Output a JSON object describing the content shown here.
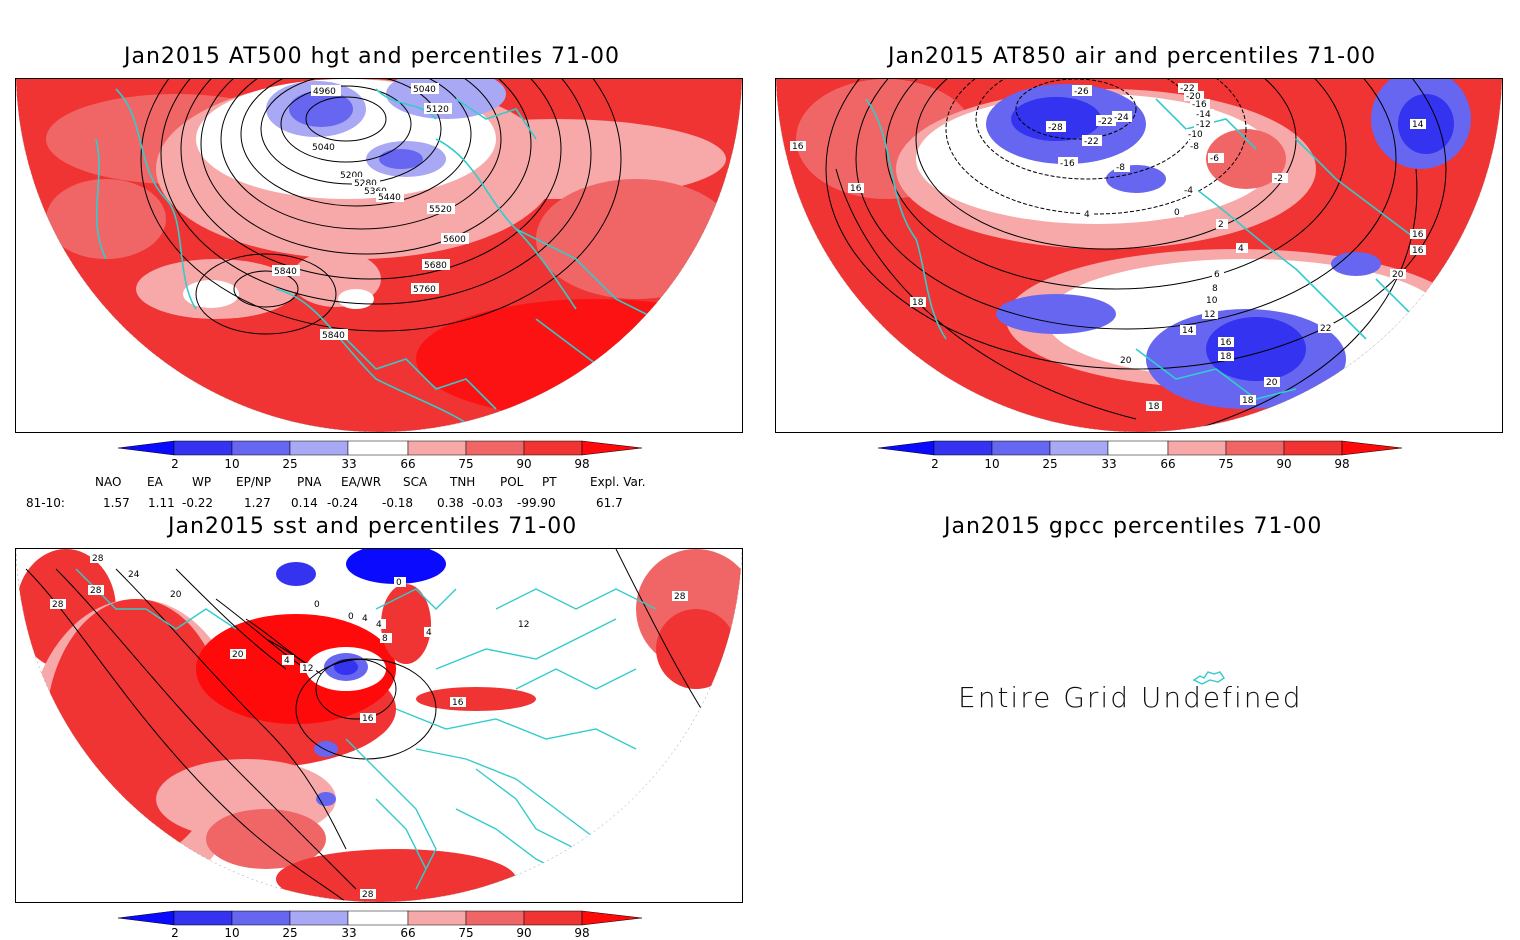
{
  "panels": {
    "hgt": {
      "title": "Jan2015 AT500 hgt and percentiles 71-00",
      "contour_labels": [
        "4960",
        "5040",
        "5040",
        "5120",
        "5200",
        "5280",
        "5360",
        "5440",
        "5520",
        "5600",
        "5680",
        "5760",
        "5840",
        "5840"
      ]
    },
    "air": {
      "title": "Jan2015 AT850 air and percentiles 71-00",
      "contour_labels": [
        "-26",
        "-28",
        "-22",
        "-22",
        "-24",
        "-16",
        "-8",
        "-22",
        "-20",
        "-16",
        "-14",
        "-12",
        "-10",
        "-8",
        "-6",
        "-4",
        "-2",
        "0",
        "2",
        "4",
        "4",
        "6",
        "8",
        "10",
        "12",
        "14",
        "16",
        "18",
        "16",
        "16",
        "18",
        "16",
        "20",
        "22",
        "20",
        "18",
        "14",
        "16",
        "18",
        "20"
      ]
    },
    "sst": {
      "title": "Jan2015 sst and percentiles 71-00",
      "contour_labels": [
        "28",
        "24",
        "28",
        "28",
        "20",
        "20",
        "4",
        "12",
        "16",
        "0",
        "0",
        "4",
        "4",
        "8",
        "4",
        "0",
        "12",
        "16",
        "28",
        "28"
      ]
    },
    "gpcc": {
      "title": "Jan2015 gpcc percentiles 71-00",
      "message": "Entire Grid Undefined"
    }
  },
  "colorbar": {
    "labels": [
      "2",
      "10",
      "25",
      "33",
      "66",
      "75",
      "90",
      "98"
    ],
    "colors": [
      "#0a0aff",
      "#3333f0",
      "#6666f0",
      "#a8a8f5",
      "#ffffff",
      "#f7a8a8",
      "#f06666",
      "#f03333",
      "#ff0a0a"
    ]
  },
  "indices": {
    "headers": [
      "NAO",
      "EA",
      "WP",
      "EP/NP",
      "PNA",
      "EA/WR",
      "SCA",
      "TNH",
      "POL",
      "PT",
      "Expl. Var."
    ],
    "row_label": "81-10:",
    "values": [
      "1.57",
      "1.11",
      "-0.22",
      "1.27",
      "0.14",
      "-0.24",
      "-0.18",
      "0.38",
      "-0.03",
      "-99.90",
      "61.7"
    ]
  }
}
